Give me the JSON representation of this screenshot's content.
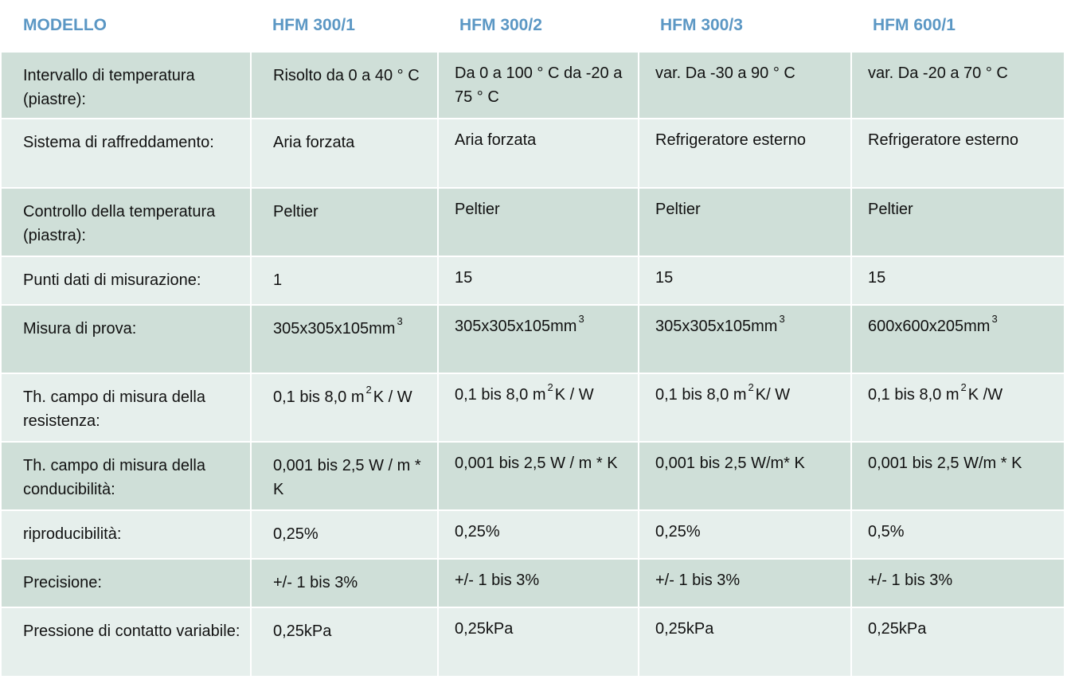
{
  "header": {
    "model_label": "MODELLO",
    "models": [
      "HFM 300/1",
      "HFM 300/2",
      "HFM 300/3",
      "HFM 600/1"
    ]
  },
  "rows": [
    {
      "label": "Intervallo di temperatura (piastre):",
      "values": [
        "Risolto da 0 a 40 ° C",
        "Da 0 a 100 ° C da -20 a 75 ° C",
        "var. Da -30 a 90 ° C",
        "var. Da -20 a 70 ° C"
      ]
    },
    {
      "label": "Sistema di raffreddamento:",
      "values": [
        "Aria forzata",
        "Aria forzata",
        "Refrigeratore esterno",
        "Refrigeratore esterno"
      ]
    },
    {
      "label": "Controllo della temperatura (piastra):",
      "values": [
        "Peltier",
        "Peltier",
        "Peltier",
        "Peltier"
      ]
    },
    {
      "label": "Punti dati di misurazione:",
      "values": [
        "1",
        "15",
        "15",
        "15"
      ]
    },
    {
      "label": "Misura di prova:",
      "values": [
        {
          "pre": "305x305x105mm",
          "sup": "3",
          "post": ""
        },
        {
          "pre": "305x305x105mm",
          "sup": "3",
          "post": ""
        },
        {
          "pre": "305x305x105mm",
          "sup": "3",
          "post": ""
        },
        {
          "pre": "600x600x205mm",
          "sup": "3",
          "post": ""
        }
      ]
    },
    {
      "label": "Th. campo di misura della resistenza:",
      "values": [
        {
          "pre": "0,1 bis 8,0 m",
          "sup": "2",
          "post": "K / W"
        },
        {
          "pre": "0,1 bis 8,0 m",
          "sup": "2",
          "post": "K / W"
        },
        {
          "pre": "0,1 bis 8,0 m",
          "sup": "2",
          "post": "K/ W"
        },
        {
          "pre": "0,1 bis 8,0 m",
          "sup": "2",
          "post": "K /W"
        }
      ]
    },
    {
      "label": "Th. campo di misura della conducibilità:",
      "values": [
        "0,001 bis 2,5 W / m * K",
        "0,001 bis 2,5 W / m * K",
        "0,001 bis 2,5 W/m* K",
        "0,001 bis 2,5 W/m * K"
      ]
    },
    {
      "label": "riproducibilità:",
      "values": [
        "0,25%",
        "0,25%",
        "0,25%",
        "0,5%"
      ]
    },
    {
      "label": "Precisione:",
      "values": [
        "+/- 1 bis 3%",
        "+/- 1 bis 3%",
        "+/- 1 bis 3%",
        "+/- 1 bis 3%"
      ]
    },
    {
      "label": "Pressione di contatto variabile:",
      "values": [
        "0,25kPa",
        "0,25kPa",
        "0,25kPa",
        "0,25kPa"
      ]
    }
  ],
  "colors": {
    "header_text": "#5b97c4",
    "row_dark": "#cfdfd8",
    "row_light": "#e6efec",
    "separator": "#ffffff"
  }
}
